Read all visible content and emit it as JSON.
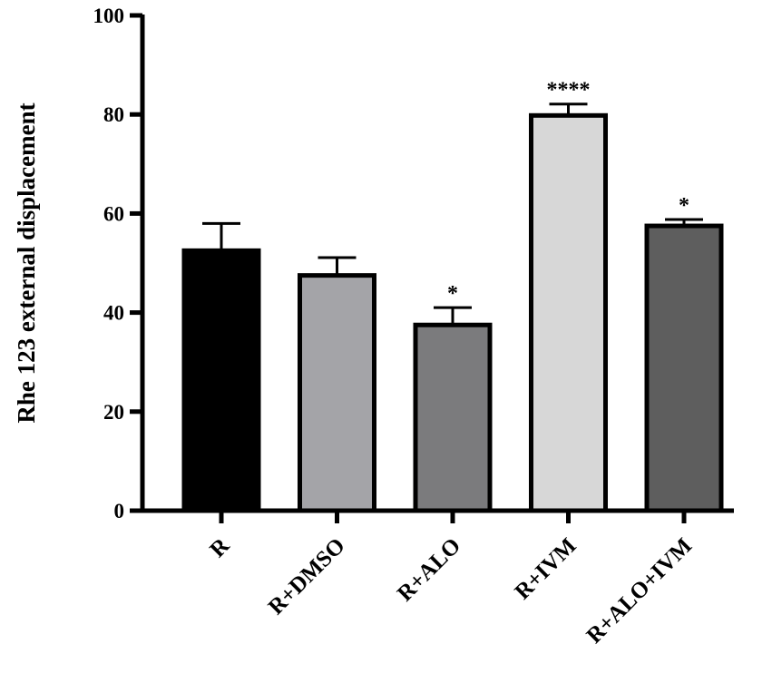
{
  "chart_data": {
    "type": "bar",
    "title": "",
    "xlabel": "",
    "ylabel": "Rhe 123 external displacement",
    "ylim": [
      0,
      100
    ],
    "yticks": [
      0,
      20,
      40,
      60,
      80,
      100
    ],
    "grid": false,
    "categories": [
      "R",
      "R+DMSO",
      "R+ALO",
      "R+IVM",
      "R+ALO+IVM"
    ],
    "values": [
      52.5,
      47.5,
      37.5,
      79.8,
      57.5
    ],
    "errors": [
      5.5,
      3.6,
      3.5,
      2.3,
      1.3
    ],
    "significance": [
      "",
      "",
      "*",
      "****",
      "*"
    ],
    "colors": [
      "#000000",
      "#a4a4a8",
      "#7b7b7d",
      "#d7d7d7",
      "#5e5e5e"
    ],
    "edge_color": "#000000"
  }
}
